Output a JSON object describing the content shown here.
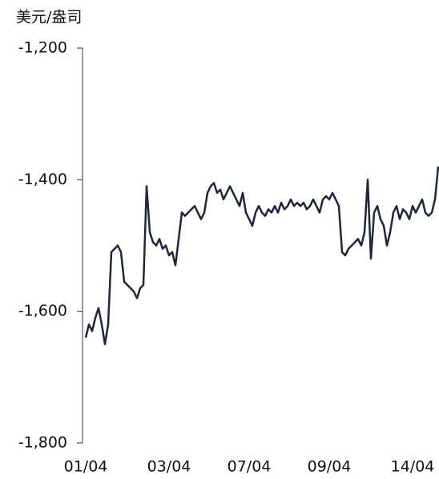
{
  "chart_data": {
    "type": "line",
    "y_label": "美元/盎司",
    "categories": [
      "01/04",
      null,
      null,
      null,
      null,
      null,
      null,
      null,
      null,
      null,
      null,
      null,
      null,
      null,
      null,
      null,
      null,
      null,
      null,
      null,
      null,
      null,
      null,
      null,
      null,
      null,
      "03/04",
      null,
      null,
      null,
      null,
      null,
      null,
      null,
      null,
      null,
      null,
      null,
      null,
      null,
      null,
      null,
      null,
      null,
      null,
      null,
      null,
      null,
      null,
      null,
      null,
      "07/04",
      null,
      null,
      null,
      null,
      null,
      null,
      null,
      null,
      null,
      null,
      null,
      null,
      null,
      null,
      null,
      null,
      null,
      null,
      null,
      null,
      null,
      null,
      null,
      null,
      "09/04",
      null,
      null,
      null,
      null,
      null,
      null,
      null,
      null,
      null,
      null,
      null,
      null,
      null,
      null,
      null,
      null,
      null,
      null,
      null,
      null,
      null,
      null,
      null,
      null,
      null,
      "14/04",
      null,
      null,
      null,
      null,
      null,
      null,
      null,
      null
    ],
    "values": [
      -1640,
      -1620,
      -1630,
      -1610,
      -1595,
      -1620,
      -1650,
      -1620,
      -1510,
      -1505,
      -1500,
      -1510,
      -1555,
      -1560,
      -1565,
      -1570,
      -1580,
      -1565,
      -1560,
      -1410,
      -1480,
      -1495,
      -1500,
      -1490,
      -1505,
      -1500,
      -1515,
      -1510,
      -1530,
      -1490,
      -1450,
      -1455,
      -1450,
      -1445,
      -1440,
      -1450,
      -1460,
      -1450,
      -1420,
      -1410,
      -1405,
      -1420,
      -1415,
      -1430,
      -1420,
      -1410,
      -1420,
      -1430,
      -1440,
      -1420,
      -1450,
      -1460,
      -1470,
      -1450,
      -1440,
      -1450,
      -1455,
      -1445,
      -1450,
      -1440,
      -1450,
      -1435,
      -1445,
      -1440,
      -1430,
      -1440,
      -1435,
      -1440,
      -1435,
      -1445,
      -1440,
      -1430,
      -1440,
      -1450,
      -1430,
      -1425,
      -1430,
      -1420,
      -1430,
      -1440,
      -1510,
      -1515,
      -1505,
      -1500,
      -1495,
      -1490,
      -1500,
      -1480,
      -1400,
      -1520,
      -1450,
      -1440,
      -1460,
      -1470,
      -1500,
      -1480,
      -1450,
      -1440,
      -1460,
      -1445,
      -1450,
      -1460,
      -1440,
      -1450,
      -1440,
      -1430,
      -1450,
      -1455,
      -1450,
      -1430,
      -1380
    ],
    "color": "#1f2637",
    "ylim": [
      -1800,
      -1200
    ],
    "yticks": [
      {
        "value": -1200,
        "label": "-1,200"
      },
      {
        "value": -1400,
        "label": "-1,400"
      },
      {
        "value": -1600,
        "label": "-1,600"
      },
      {
        "value": -1800,
        "label": "-1,800"
      }
    ]
  }
}
